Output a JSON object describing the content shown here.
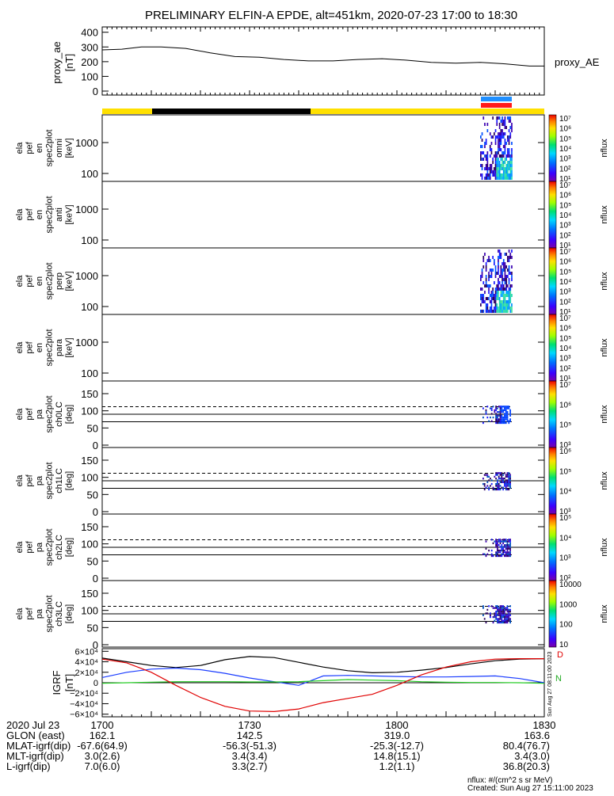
{
  "title": "PRELIMINARY ELFIN-A EPDE, alt=451km, 2020-07-23 17:00 to 18:30",
  "colors": {
    "state_bar_yellow": "#ffe000",
    "state_bar_black": "#000000",
    "flag_blue": "#1f8fff",
    "flag_red": "#ff1a1a",
    "grf_black": "#000000",
    "grf_blue": "#1a3cff",
    "grf_green": "#22cc22",
    "grf_red": "#e00000"
  },
  "chart_data": [
    {
      "type": "line",
      "name": "proxy_ae",
      "ylabel": [
        "proxy_ae",
        "[nT]"
      ],
      "legend": "proxy_AE",
      "ylim": [
        0,
        420
      ],
      "yticks": [
        "0",
        "100",
        "200",
        "300",
        "400"
      ],
      "x": [
        0,
        4,
        8,
        12,
        17,
        22,
        27,
        32,
        37,
        42,
        47,
        52,
        57,
        62,
        67,
        72,
        77,
        82,
        87,
        90
      ],
      "y": [
        280,
        285,
        300,
        300,
        290,
        260,
        235,
        230,
        215,
        205,
        205,
        215,
        220,
        210,
        195,
        190,
        195,
        185,
        170,
        170
      ]
    },
    {
      "type": "heatmap",
      "panels": [
        {
          "ylabel": [
            "ela",
            "pef",
            "en",
            "spec2plot",
            "omni",
            "[keV]"
          ],
          "yticks": [
            "100",
            "1000"
          ],
          "colorbar_ticks": [
            "10^1",
            "10^2",
            "10^3",
            "10^4",
            "10^5",
            "10^6",
            "10^7"
          ],
          "colorbar_label": "nflux"
        },
        {
          "ylabel": [
            "ela",
            "pef",
            "en",
            "spec2plot",
            "anti",
            "[keV]"
          ],
          "yticks": [
            "100",
            "1000"
          ],
          "colorbar_ticks": [
            "10^1",
            "10^2",
            "10^3",
            "10^4",
            "10^5",
            "10^6",
            "10^7"
          ],
          "colorbar_label": "nflux"
        },
        {
          "ylabel": [
            "ela",
            "pef",
            "en",
            "spec2plot",
            "perp",
            "[keV]"
          ],
          "yticks": [
            "100",
            "1000"
          ],
          "colorbar_ticks": [
            "10^1",
            "10^2",
            "10^3",
            "10^4",
            "10^5",
            "10^6",
            "10^7"
          ],
          "colorbar_label": "nflux"
        },
        {
          "ylabel": [
            "ela",
            "pef",
            "en",
            "spec2plot",
            "para",
            "[keV]"
          ],
          "yticks": [
            "100",
            "1000"
          ],
          "colorbar_ticks": [
            "10^1",
            "10^2",
            "10^3",
            "10^4",
            "10^5",
            "10^6",
            "10^7"
          ],
          "colorbar_label": "nflux"
        },
        {
          "ylabel": [
            "ela",
            "pef",
            "pa",
            "spec2plot",
            "ch0LC",
            "[deg]"
          ],
          "yticks": [
            "0",
            "50",
            "100",
            "150"
          ],
          "colorbar_ticks": [
            "10^3",
            "10^5",
            "10^6",
            "10^7"
          ],
          "colorbar_label": "nflux"
        },
        {
          "ylabel": [
            "ela",
            "pef",
            "pa",
            "spec2plot",
            "ch1LC",
            "[deg]"
          ],
          "yticks": [
            "0",
            "50",
            "100",
            "150"
          ],
          "colorbar_ticks": [
            "10^3",
            "10^4",
            "10^5",
            "10^6"
          ],
          "colorbar_label": "nflux"
        },
        {
          "ylabel": [
            "ela",
            "pef",
            "pa",
            "spec2plot",
            "ch2LC",
            "[deg]"
          ],
          "yticks": [
            "0",
            "50",
            "100",
            "150"
          ],
          "colorbar_ticks": [
            "10^2",
            "10^3",
            "10^4",
            "10^5"
          ],
          "colorbar_label": "nflux"
        },
        {
          "ylabel": [
            "ela",
            "pef",
            "pa",
            "spec2plot",
            "ch3LC",
            "[deg]"
          ],
          "yticks": [
            "0",
            "50",
            "100",
            "150"
          ],
          "colorbar_ticks": [
            "10",
            "100",
            "1000",
            "10000"
          ],
          "colorbar_label": "nflux"
        }
      ]
    },
    {
      "type": "line",
      "name": "IGRF",
      "ylabel": [
        "IGRF",
        "[nT]"
      ],
      "ylim": [
        -65000,
        65000
      ],
      "yticks": [
        "6×10⁴",
        "4×10⁴",
        "2×10⁴",
        "0",
        "−2×10⁴",
        "−4×10⁴",
        "−6×10⁴"
      ],
      "series_labels": [
        "D",
        "N"
      ],
      "x": [
        0,
        5,
        10,
        15,
        20,
        25,
        30,
        35,
        40,
        45,
        50,
        55,
        60,
        65,
        70,
        75,
        80,
        85,
        90
      ],
      "series": [
        {
          "color": "black",
          "values": [
            47000,
            40000,
            33000,
            29000,
            33000,
            44000,
            50000,
            48000,
            39000,
            30000,
            23000,
            19000,
            20000,
            24000,
            29000,
            36000,
            42000,
            45000,
            46000
          ]
        },
        {
          "color": "blue",
          "values": [
            10000,
            20000,
            26000,
            28000,
            25000,
            18000,
            9000,
            2000,
            -5000,
            13000,
            14000,
            13000,
            12000,
            11000,
            11000,
            12000,
            13000,
            8000,
            0
          ]
        },
        {
          "color": "green",
          "values": [
            -1000,
            0,
            1000,
            2000,
            2000,
            2000,
            1500,
            1500,
            2000,
            4000,
            6000,
            5000,
            4000,
            2000,
            1000,
            500,
            500,
            0,
            -1000
          ]
        },
        {
          "color": "red",
          "values": [
            45000,
            38000,
            20000,
            -5000,
            -28000,
            -45000,
            -54000,
            -55000,
            -50000,
            -38000,
            -30000,
            -22000,
            -5000,
            15000,
            30000,
            40000,
            45000,
            46000,
            46000
          ]
        }
      ]
    }
  ],
  "x_axis": {
    "ticks": [
      "1700",
      "1730",
      "1800",
      "1830"
    ],
    "rows": [
      {
        "label": "2020 Jul 23",
        "values": [
          "",
          "",
          "",
          ""
        ]
      },
      {
        "label": "GLON (east)",
        "values": [
          "162.1",
          "142.5",
          "319.0",
          "163.6"
        ]
      },
      {
        "label": "MLAT-igrf(dip)",
        "values": [
          "-67.6(64.9)",
          "-56.3(-51.3)",
          "-25.3(-12.7)",
          "80.4(76.7)"
        ]
      },
      {
        "label": "MLT-igrf(dip)",
        "values": [
          "3.0(2.6)",
          "3.4(3.4)",
          "14.8(15.1)",
          "3.4(3.0)"
        ]
      },
      {
        "label": "L-igrf(dip)",
        "values": [
          "7.0(6.0)",
          "3.3(2.7)",
          "1.2(1.1)",
          "36.8(20.3)"
        ]
      }
    ]
  },
  "footer": {
    "units": "nflux: #/(cm^2 s sr MeV)",
    "created": "Created: Sun Aug 27 15:11:00 2023",
    "side_stamp": "Sun Aug 27 08:11:00 2023"
  }
}
